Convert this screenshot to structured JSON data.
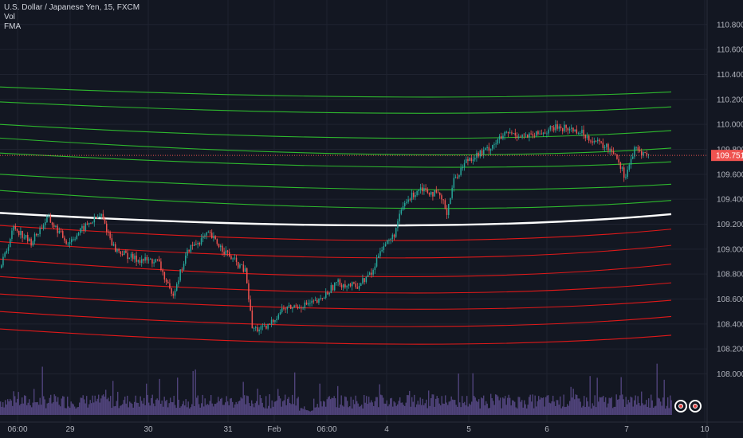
{
  "legend": {
    "symbol": "U.S. Dollar / Japanese Yen, 15, FXCM",
    "vol": "Vol",
    "fma": "FMA"
  },
  "colors": {
    "background": "#131722",
    "grid": "#1f2330",
    "up": "#26a69a",
    "down": "#ef5350",
    "green_band": "#2eb82e",
    "red_band": "#e01919",
    "mid_band": "#ffffff",
    "volume": "#5b4b8a",
    "price_tag": "#ef5350"
  },
  "chart_data": {
    "type": "candlestick",
    "title": "U.S. Dollar / Japanese Yen, 15, FXCM",
    "y_axis_side": "right",
    "ylim": [
      107.85,
      110.92
    ],
    "y_ticks": [
      "110.800",
      "110.600",
      "110.400",
      "110.200",
      "110.000",
      "109.800",
      "109.600",
      "109.400",
      "109.200",
      "109.000",
      "108.800",
      "108.600",
      "108.400",
      "108.200",
      "108.000"
    ],
    "x_ticks": [
      "06:00",
      "29",
      "30",
      "31",
      "Feb",
      "06:00",
      "4",
      "5",
      "6",
      "7",
      "10"
    ],
    "last_price": "109.751",
    "price_path": [
      [
        0.0,
        108.85
      ],
      [
        0.02,
        109.18
      ],
      [
        0.045,
        109.05
      ],
      [
        0.07,
        109.25
      ],
      [
        0.1,
        109.05
      ],
      [
        0.13,
        109.2
      ],
      [
        0.15,
        109.27
      ],
      [
        0.17,
        109.0
      ],
      [
        0.2,
        108.92
      ],
      [
        0.235,
        108.9
      ],
      [
        0.255,
        108.62
      ],
      [
        0.28,
        109.0
      ],
      [
        0.31,
        109.12
      ],
      [
        0.345,
        108.92
      ],
      [
        0.365,
        108.82
      ],
      [
        0.375,
        108.36
      ],
      [
        0.395,
        108.36
      ],
      [
        0.42,
        108.52
      ],
      [
        0.45,
        108.55
      ],
      [
        0.475,
        108.58
      ],
      [
        0.5,
        108.73
      ],
      [
        0.53,
        108.7
      ],
      [
        0.555,
        108.82
      ],
      [
        0.565,
        109.0
      ],
      [
        0.585,
        109.1
      ],
      [
        0.6,
        109.35
      ],
      [
        0.625,
        109.5
      ],
      [
        0.655,
        109.42
      ],
      [
        0.665,
        109.3
      ],
      [
        0.675,
        109.55
      ],
      [
        0.695,
        109.72
      ],
      [
        0.72,
        109.78
      ],
      [
        0.755,
        109.93
      ],
      [
        0.79,
        109.9
      ],
      [
        0.83,
        109.98
      ],
      [
        0.86,
        109.95
      ],
      [
        0.89,
        109.85
      ],
      [
        0.915,
        109.78
      ],
      [
        0.93,
        109.58
      ],
      [
        0.945,
        109.8
      ],
      [
        0.965,
        109.75
      ]
    ],
    "bands": [
      {
        "color": "green",
        "values": [
          110.3,
          110.22,
          110.26
        ]
      },
      {
        "color": "green",
        "values": [
          110.18,
          110.09,
          110.14
        ]
      },
      {
        "color": "green",
        "values": [
          110.0,
          109.89,
          109.95
        ]
      },
      {
        "color": "green",
        "values": [
          109.89,
          109.76,
          109.81
        ]
      },
      {
        "color": "green",
        "values": [
          109.77,
          109.66,
          109.7
        ]
      },
      {
        "color": "green",
        "values": [
          109.6,
          109.48,
          109.52
        ]
      },
      {
        "color": "green",
        "values": [
          109.47,
          109.33,
          109.39
        ]
      },
      {
        "color": "white",
        "values": [
          109.29,
          109.19,
          109.28
        ]
      },
      {
        "color": "red",
        "values": [
          109.19,
          109.07,
          109.16
        ]
      },
      {
        "color": "red",
        "values": [
          109.06,
          108.93,
          109.03
        ]
      },
      {
        "color": "red",
        "values": [
          108.92,
          108.78,
          108.88
        ]
      },
      {
        "color": "red",
        "values": [
          108.78,
          108.65,
          108.73
        ]
      },
      {
        "color": "red",
        "values": [
          108.64,
          108.52,
          108.59
        ]
      },
      {
        "color": "red",
        "values": [
          108.5,
          108.38,
          108.46
        ]
      },
      {
        "color": "red",
        "values": [
          108.36,
          108.24,
          108.31
        ]
      }
    ]
  }
}
